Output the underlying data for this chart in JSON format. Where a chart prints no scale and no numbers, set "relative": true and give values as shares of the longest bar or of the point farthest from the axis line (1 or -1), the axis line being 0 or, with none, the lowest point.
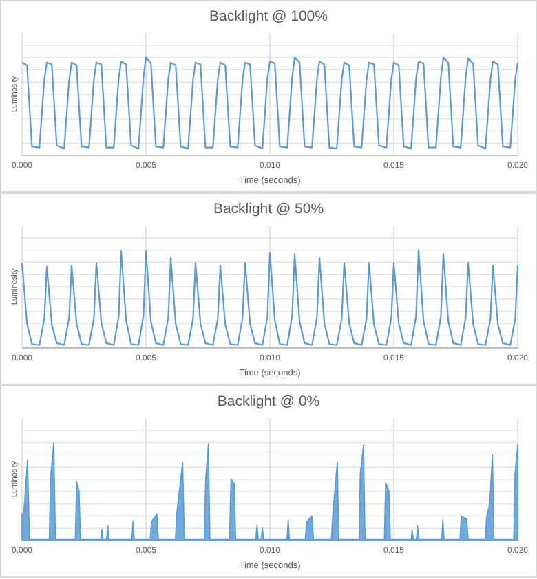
{
  "chart_data": [
    {
      "type": "line",
      "title": "Backlight @ 100%",
      "xlabel": "Time (seconds)",
      "ylabel": "Luminosity",
      "relative": true,
      "grid": true,
      "tick_labels": "x",
      "xlim": [
        0,
        0.02
      ],
      "xticks": [
        {
          "value": 0,
          "label": "0.000"
        },
        {
          "value": 0.005,
          "label": "0.005"
        },
        {
          "value": 0.01,
          "label": "0.010"
        },
        {
          "value": 0.015,
          "label": "0.015"
        },
        {
          "value": 0.02,
          "label": "0.020"
        }
      ],
      "x": [
        0,
        0.0002,
        0.0004,
        0.0007,
        0.0009,
        0.001,
        0.0012,
        0.0014,
        0.0017,
        0.0019,
        0.002,
        0.0022,
        0.0024,
        0.0027,
        0.0029,
        0.003,
        0.0032,
        0.0034,
        0.0037,
        0.0039,
        0.004,
        0.0042,
        0.0044,
        0.0047,
        0.0049,
        0.005,
        0.0052,
        0.0054,
        0.0057,
        0.0059,
        0.006,
        0.0062,
        0.0064,
        0.0067,
        0.0069,
        0.007,
        0.0072,
        0.0074,
        0.0077,
        0.0079,
        0.008,
        0.0082,
        0.0084,
        0.0087,
        0.0089,
        0.009,
        0.0092,
        0.0094,
        0.0097,
        0.0099,
        0.01,
        0.0102,
        0.0104,
        0.0107,
        0.0109,
        0.011,
        0.0112,
        0.0114,
        0.0117,
        0.0119,
        0.012,
        0.0122,
        0.0124,
        0.0127,
        0.0129,
        0.013,
        0.0132,
        0.0134,
        0.0137,
        0.0139,
        0.014,
        0.0142,
        0.0144,
        0.0147,
        0.0149,
        0.015,
        0.0152,
        0.0154,
        0.0157,
        0.0159,
        0.016,
        0.0162,
        0.0164,
        0.0167,
        0.0169,
        0.017,
        0.0172,
        0.0174,
        0.0177,
        0.0179,
        0.018,
        0.0182,
        0.0184,
        0.0187,
        0.0189,
        0.019,
        0.0192,
        0.0194,
        0.0197,
        0.0199,
        0.02
      ],
      "series": [
        {
          "color": "#5b9bd5",
          "values": [
            0.95,
            0.92,
            0.09,
            0.08,
            0.78,
            0.95,
            0.93,
            0.1,
            0.07,
            0.77,
            0.95,
            0.92,
            0.09,
            0.08,
            0.78,
            0.95,
            0.93,
            0.08,
            0.08,
            0.79,
            0.96,
            0.93,
            0.1,
            0.07,
            0.8,
            1.0,
            0.94,
            0.09,
            0.08,
            0.78,
            0.95,
            0.92,
            0.09,
            0.07,
            0.77,
            0.95,
            0.93,
            0.08,
            0.08,
            0.78,
            0.95,
            0.92,
            0.09,
            0.08,
            0.78,
            0.95,
            0.93,
            0.1,
            0.07,
            0.79,
            0.96,
            0.94,
            0.09,
            0.08,
            0.8,
            1.0,
            0.95,
            0.09,
            0.08,
            0.78,
            0.96,
            0.93,
            0.08,
            0.07,
            0.78,
            0.95,
            0.92,
            0.09,
            0.08,
            0.77,
            0.95,
            0.93,
            0.1,
            0.08,
            0.78,
            0.95,
            0.92,
            0.09,
            0.07,
            0.79,
            0.96,
            0.94,
            0.08,
            0.08,
            0.8,
            1.0,
            0.95,
            0.09,
            0.08,
            0.8,
            0.99,
            0.94,
            0.1,
            0.07,
            0.78,
            0.96,
            0.93,
            0.09,
            0.08,
            0.78,
            0.95
          ]
        }
      ]
    },
    {
      "type": "line",
      "title": "Backlight @ 50%",
      "xlabel": "Time (seconds)",
      "ylabel": "Luminosity",
      "relative": true,
      "grid": true,
      "tick_labels": "x",
      "xlim": [
        0,
        0.02
      ],
      "xticks": [
        {
          "value": 0,
          "label": "0.000"
        },
        {
          "value": 0.005,
          "label": "0.005"
        },
        {
          "value": 0.01,
          "label": "0.010"
        },
        {
          "value": 0.015,
          "label": "0.015"
        },
        {
          "value": 0.02,
          "label": "0.020"
        }
      ],
      "x": [
        0,
        0.0002,
        0.0004,
        0.0007,
        0.0009,
        0.001,
        0.0012,
        0.0014,
        0.0017,
        0.0019,
        0.002,
        0.0022,
        0.0024,
        0.0027,
        0.0029,
        0.003,
        0.0032,
        0.0034,
        0.0037,
        0.0039,
        0.004,
        0.0042,
        0.0044,
        0.0047,
        0.0049,
        0.005,
        0.0052,
        0.0054,
        0.0057,
        0.0059,
        0.006,
        0.0062,
        0.0064,
        0.0067,
        0.0069,
        0.007,
        0.0072,
        0.0074,
        0.0077,
        0.0079,
        0.008,
        0.0082,
        0.0084,
        0.0087,
        0.0089,
        0.009,
        0.0092,
        0.0094,
        0.0097,
        0.0099,
        0.01,
        0.0102,
        0.0104,
        0.0107,
        0.0109,
        0.011,
        0.0112,
        0.0114,
        0.0117,
        0.0119,
        0.012,
        0.0122,
        0.0124,
        0.0127,
        0.0129,
        0.013,
        0.0132,
        0.0134,
        0.0137,
        0.0139,
        0.014,
        0.0142,
        0.0144,
        0.0147,
        0.0149,
        0.015,
        0.0152,
        0.0154,
        0.0157,
        0.0159,
        0.016,
        0.0162,
        0.0164,
        0.0167,
        0.0169,
        0.017,
        0.0172,
        0.0174,
        0.0177,
        0.0179,
        0.018,
        0.0182,
        0.0184,
        0.0187,
        0.0189,
        0.019,
        0.0192,
        0.0194,
        0.0197,
        0.0199,
        0.02
      ],
      "series": [
        {
          "color": "#5b9bd5",
          "values": [
            0.87,
            0.25,
            0.04,
            0.03,
            0.3,
            0.83,
            0.24,
            0.05,
            0.03,
            0.31,
            0.84,
            0.25,
            0.04,
            0.03,
            0.3,
            0.87,
            0.26,
            0.05,
            0.03,
            0.32,
            0.99,
            0.28,
            0.04,
            0.03,
            0.33,
            0.99,
            0.27,
            0.05,
            0.03,
            0.31,
            0.92,
            0.25,
            0.04,
            0.03,
            0.3,
            0.87,
            0.25,
            0.05,
            0.03,
            0.3,
            0.84,
            0.24,
            0.04,
            0.03,
            0.31,
            0.87,
            0.25,
            0.05,
            0.03,
            0.32,
            0.97,
            0.28,
            0.04,
            0.03,
            0.33,
            0.96,
            0.27,
            0.05,
            0.03,
            0.31,
            0.92,
            0.25,
            0.04,
            0.03,
            0.3,
            0.87,
            0.25,
            0.05,
            0.03,
            0.3,
            0.87,
            0.24,
            0.04,
            0.03,
            0.31,
            0.87,
            0.25,
            0.05,
            0.03,
            0.33,
            1.0,
            0.28,
            0.04,
            0.03,
            0.32,
            0.96,
            0.27,
            0.05,
            0.03,
            0.31,
            0.87,
            0.25,
            0.04,
            0.03,
            0.3,
            0.84,
            0.24,
            0.05,
            0.03,
            0.3,
            0.84
          ]
        }
      ]
    },
    {
      "type": "area",
      "title": "Backlight @ 0%",
      "xlabel": "Time (seconds)",
      "ylabel": "Luminosity",
      "relative": true,
      "grid": true,
      "tick_labels": "x",
      "xlim": [
        0,
        0.02
      ],
      "xticks": [
        {
          "value": 0,
          "label": "0.000"
        },
        {
          "value": 0.005,
          "label": "0.005"
        },
        {
          "value": 0.01,
          "label": "0.010"
        },
        {
          "value": 0.015,
          "label": "0.015"
        },
        {
          "value": 0.02,
          "label": "0.020"
        }
      ],
      "x": [
        0,
        7e-05,
        0.00022,
        0.0003,
        0.0011,
        0.00115,
        0.00128,
        0.00135,
        0.00215,
        0.0022,
        0.0023,
        0.00236,
        0.00317,
        0.00322,
        0.00327,
        0.00341,
        0.00346,
        0.00351,
        0.00443,
        0.00448,
        0.00453,
        0.00517,
        0.00522,
        0.00544,
        0.0055,
        0.00619,
        0.00624,
        0.00648,
        0.00655,
        0.00735,
        0.00741,
        0.00752,
        0.00758,
        0.00837,
        0.00843,
        0.00856,
        0.00862,
        0.00943,
        0.00948,
        0.00953,
        0.00965,
        0.0097,
        0.00975,
        0.01069,
        0.01074,
        0.01079,
        0.01143,
        0.01148,
        0.0117,
        0.01176,
        0.01248,
        0.01254,
        0.01272,
        0.01278,
        0.0136,
        0.01365,
        0.01378,
        0.01384,
        0.01462,
        0.01467,
        0.0148,
        0.01486,
        0.0157,
        0.01574,
        0.01579,
        0.01591,
        0.01596,
        0.01601,
        0.01693,
        0.01698,
        0.01703,
        0.01767,
        0.01772,
        0.01794,
        0.018,
        0.01869,
        0.01874,
        0.01887,
        0.01898,
        0.01904,
        0.01984,
        0.01989,
        0.02
      ],
      "series": [
        {
          "color": "#5b9bd5",
          "values": [
            0.27,
            0.28,
            0.82,
            0.01,
            0.01,
            0.64,
            1.0,
            0.01,
            0.01,
            0.6,
            0.51,
            0.01,
            0.01,
            0.11,
            0.01,
            0.01,
            0.15,
            0.01,
            0.01,
            0.2,
            0.01,
            0.01,
            0.19,
            0.27,
            0.01,
            0.01,
            0.27,
            0.8,
            0.01,
            0.01,
            0.63,
            0.99,
            0.01,
            0.01,
            0.63,
            0.58,
            0.01,
            0.01,
            0.16,
            0.01,
            0.01,
            0.13,
            0.01,
            0.01,
            0.21,
            0.01,
            0.01,
            0.19,
            0.25,
            0.01,
            0.01,
            0.27,
            0.8,
            0.01,
            0.01,
            0.7,
            0.98,
            0.01,
            0.01,
            0.59,
            0.51,
            0.01,
            0.01,
            0.11,
            0.01,
            0.01,
            0.15,
            0.01,
            0.01,
            0.21,
            0.01,
            0.01,
            0.25,
            0.22,
            0.01,
            0.01,
            0.23,
            0.38,
            0.88,
            0.01,
            0.01,
            0.68,
            0.98
          ]
        }
      ]
    }
  ]
}
